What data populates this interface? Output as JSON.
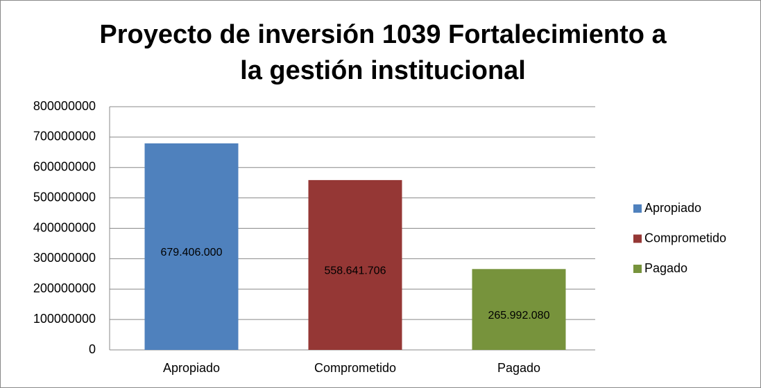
{
  "chart_data": {
    "type": "bar",
    "title": [
      "Proyecto de inversión 1039 Fortalecimiento a",
      "la gestión institucional"
    ],
    "categories": [
      "Apropiado",
      "Comprometido",
      "Pagado"
    ],
    "values": [
      679406000,
      558641706,
      265992080
    ],
    "value_labels": [
      "679.406.000",
      "558.641.706",
      "265.992.080"
    ],
    "colors": [
      "#4f81bd",
      "#953735",
      "#77933c"
    ],
    "ylim": [
      0,
      800000000
    ],
    "yticks": [
      0,
      100000000,
      200000000,
      300000000,
      400000000,
      500000000,
      600000000,
      700000000,
      800000000
    ],
    "grid": true,
    "legend": "right"
  }
}
